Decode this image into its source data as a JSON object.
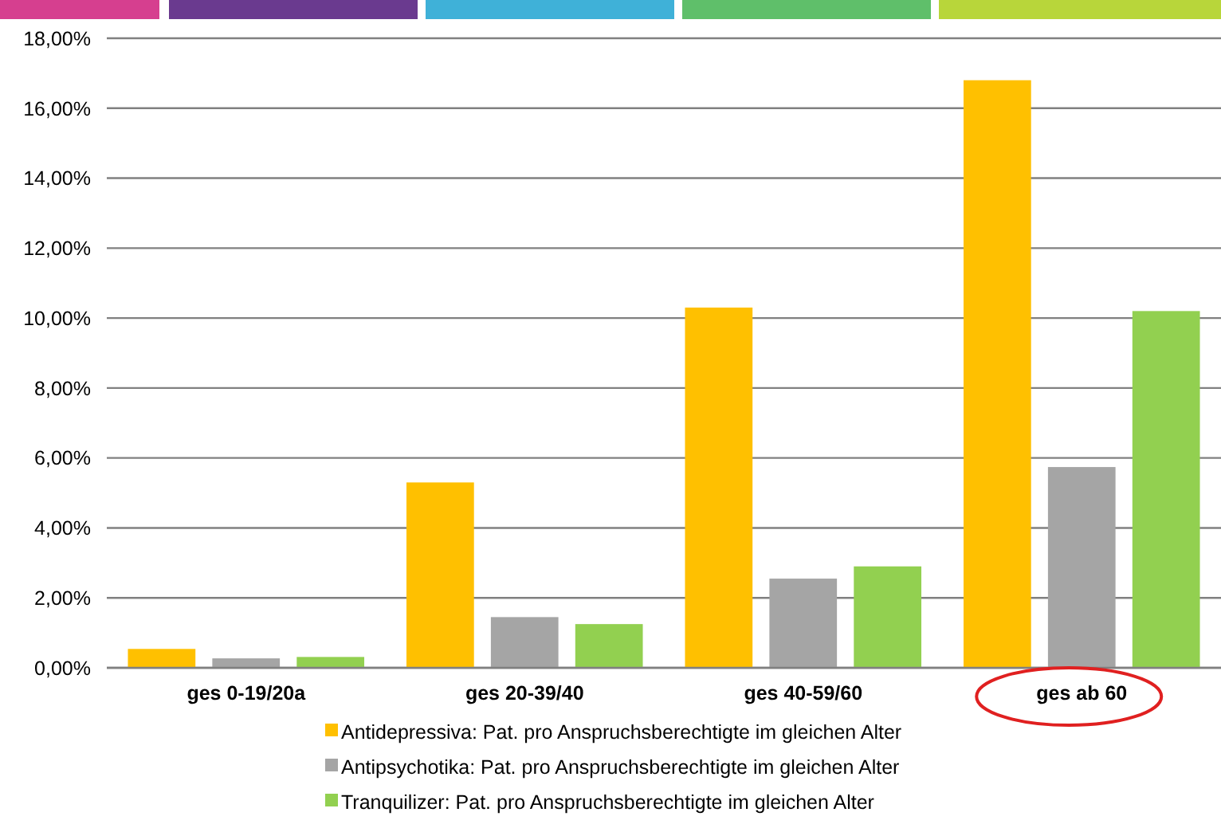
{
  "chart_data": {
    "type": "bar",
    "categories": [
      "ges 0-19/20a",
      "ges 20-39/40",
      "ges 40-59/60",
      "ges ab 60"
    ],
    "series": [
      {
        "name": "Antidepressiva: Pat. pro Anspruchsberechtigte im gleichen Alter",
        "color": "#ffc000",
        "values": [
          0.54,
          5.3,
          10.3,
          16.8
        ]
      },
      {
        "name": "Antipsychotika: Pat. pro Anspruchsberechtigte im gleichen Alter",
        "color": "#a5a5a5",
        "values": [
          0.27,
          1.45,
          2.55,
          5.74
        ]
      },
      {
        "name": "Tranquilizer: Pat. pro Anspruchsberechtigte im gleichen Alter",
        "color": "#92d050",
        "values": [
          0.31,
          1.25,
          2.9,
          10.2
        ]
      }
    ],
    "ylim": [
      0,
      18
    ],
    "yticks": [
      {
        "value": 0,
        "label": "0,00%"
      },
      {
        "value": 2,
        "label": "2,00%"
      },
      {
        "value": 4,
        "label": "4,00%"
      },
      {
        "value": 6,
        "label": "6,00%"
      },
      {
        "value": 8,
        "label": "8,00%"
      },
      {
        "value": 10,
        "label": "10,00%"
      },
      {
        "value": 12,
        "label": "12,00%"
      },
      {
        "value": 14,
        "label": "14,00%"
      },
      {
        "value": 16,
        "label": "16,00%"
      },
      {
        "value": 18,
        "label": "18,00%"
      }
    ],
    "grid": "y",
    "legend": "bottom"
  }
}
